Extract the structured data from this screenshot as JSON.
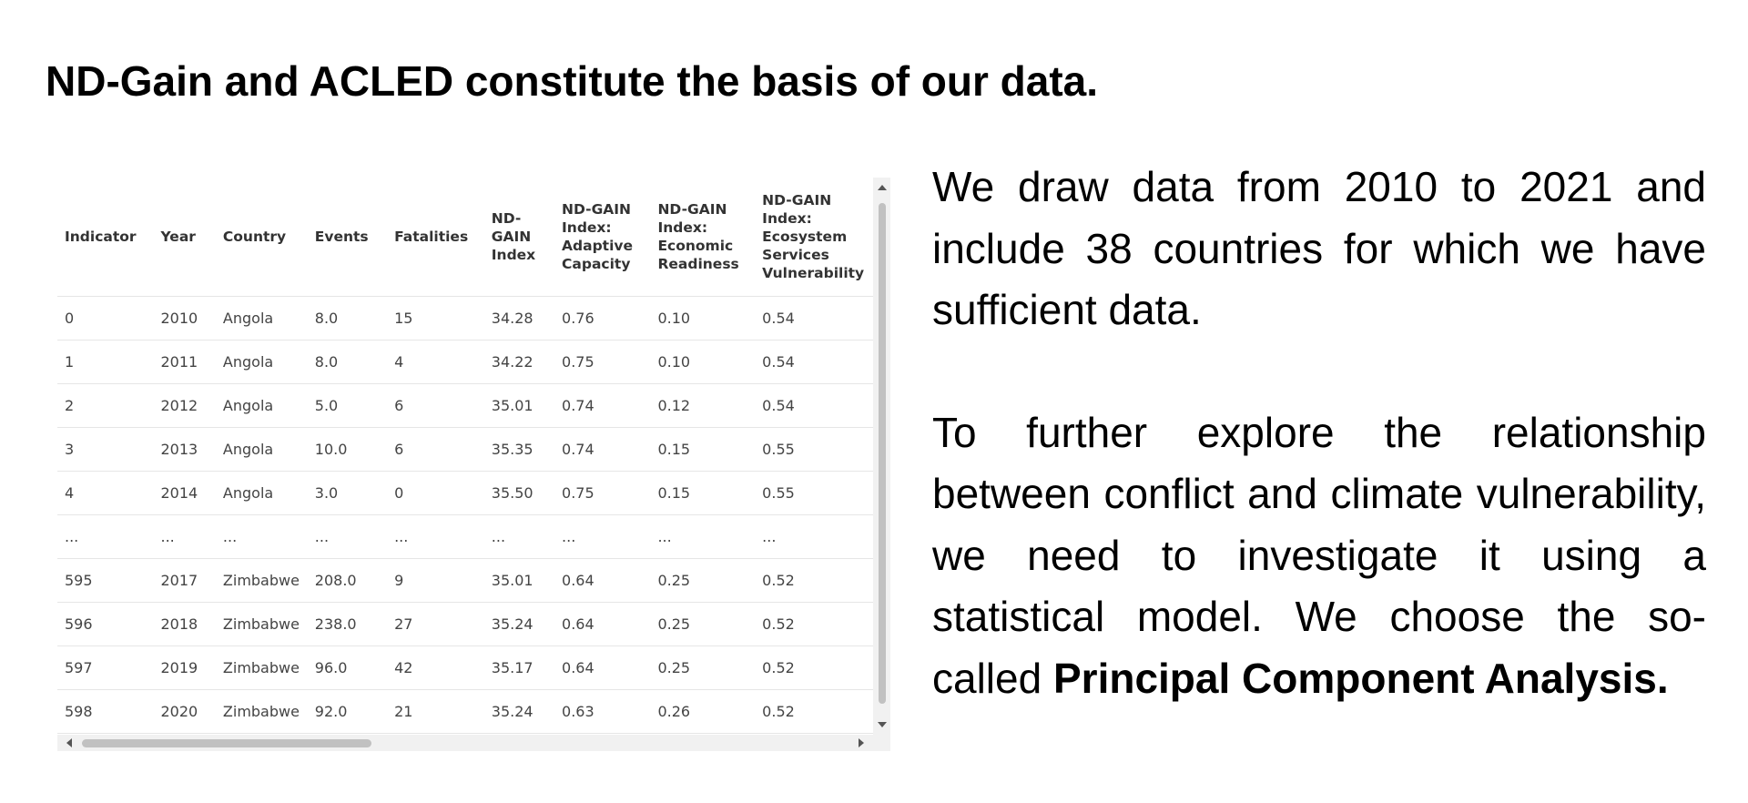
{
  "title": "ND-Gain and ACLED constitute the basis of our data.",
  "table": {
    "columns": [
      "Indicator",
      "Year",
      "Country",
      "Events",
      "Fatalities",
      "ND-GAIN Index",
      "ND-GAIN Index: Adaptive Capacity",
      "ND-GAIN Index: Economic Readiness",
      "ND-GAIN Index: Ecosystem Services Vulnerability"
    ],
    "rows": [
      [
        "0",
        "2010",
        "Angola",
        "8.0",
        "15",
        "34.28",
        "0.76",
        "0.10",
        "0.54"
      ],
      [
        "1",
        "2011",
        "Angola",
        "8.0",
        "4",
        "34.22",
        "0.75",
        "0.10",
        "0.54"
      ],
      [
        "2",
        "2012",
        "Angola",
        "5.0",
        "6",
        "35.01",
        "0.74",
        "0.12",
        "0.54"
      ],
      [
        "3",
        "2013",
        "Angola",
        "10.0",
        "6",
        "35.35",
        "0.74",
        "0.15",
        "0.55"
      ],
      [
        "4",
        "2014",
        "Angola",
        "3.0",
        "0",
        "35.50",
        "0.75",
        "0.15",
        "0.55"
      ],
      [
        "...",
        "...",
        "...",
        "...",
        "...",
        "...",
        "...",
        "...",
        "..."
      ],
      [
        "595",
        "2017",
        "Zimbabwe",
        "208.0",
        "9",
        "35.01",
        "0.64",
        "0.25",
        "0.52"
      ],
      [
        "596",
        "2018",
        "Zimbabwe",
        "238.0",
        "27",
        "35.24",
        "0.64",
        "0.25",
        "0.52"
      ],
      [
        "597",
        "2019",
        "Zimbabwe",
        "96.0",
        "42",
        "35.17",
        "0.64",
        "0.25",
        "0.52"
      ],
      [
        "598",
        "2020",
        "Zimbabwe",
        "92.0",
        "21",
        "35.24",
        "0.63",
        "0.26",
        "0.52"
      ]
    ]
  },
  "paragraph1": "We draw data from 2010 to 2021 and include 38 countries for which we have sufficient data.",
  "paragraph2": {
    "text": "To further explore the relationship between conflict and climate vulnerability, we need to investigate it using a statistical model. We choose the so-called",
    "bold": "Principal Component Analysis."
  }
}
